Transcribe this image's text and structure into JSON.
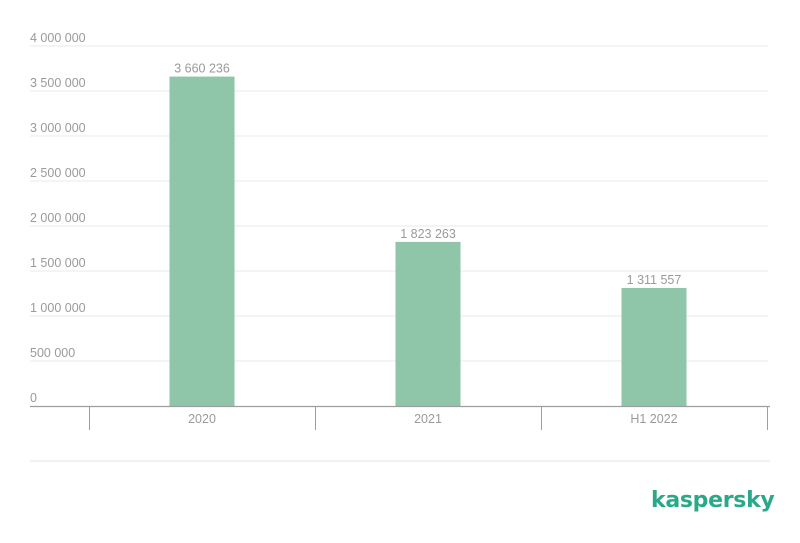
{
  "brand": {
    "logo_text": "kaspersky",
    "logo_color": "#2aa98a"
  },
  "colors": {
    "bar": "#8fc5a8",
    "grid": "#e9e9e9",
    "axis": "#9e9e9e",
    "text": "#9a9a9a"
  },
  "chart_data": {
    "type": "bar",
    "categories": [
      "2020",
      "2021",
      "H1 2022"
    ],
    "values": [
      3660236,
      1823263,
      1311557
    ],
    "data_labels": [
      "3 660 236",
      "1 823 263",
      "1 311 557"
    ],
    "y_ticks": [
      0,
      500000,
      1000000,
      1500000,
      2000000,
      2500000,
      3000000,
      3500000,
      4000000
    ],
    "y_tick_labels": [
      "0",
      "500 000",
      "1 000 000",
      "1 500 000",
      "2 000 000",
      "2 500 000",
      "3 000 000",
      "3 500 000",
      "4 000 000"
    ],
    "ylim": [
      0,
      4000000
    ],
    "grid": true,
    "legend": false
  }
}
